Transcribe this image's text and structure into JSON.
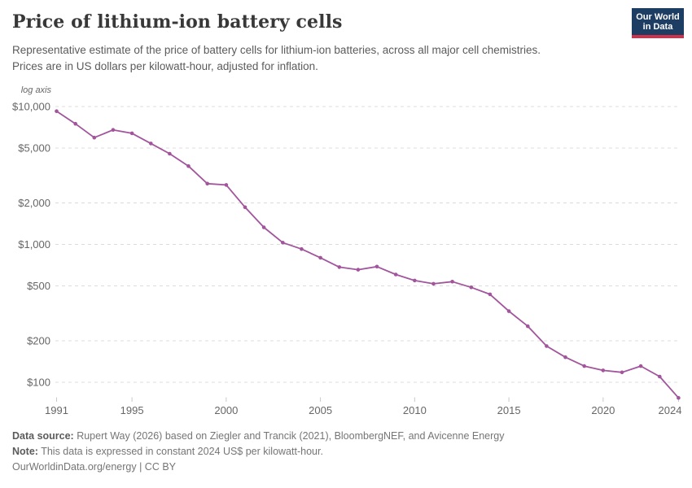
{
  "header": {
    "title": "Price of lithium-ion battery cells",
    "subtitle_line1": "Representative estimate of the price of battery cells for lithium-ion batteries, across all major cell chemistries.",
    "subtitle_line2": "Prices are in US dollars per kilowatt-hour, adjusted for inflation.",
    "logo": {
      "line1": "Our World",
      "line2": "in Data",
      "bg_color": "#1d3d63",
      "accent_color": "#cf304a"
    }
  },
  "chart_data": {
    "type": "line",
    "title": "Price of lithium-ion battery cells",
    "scale_note": "log axis",
    "grid": true,
    "legend_position": "none",
    "x": [
      1991,
      1992,
      1993,
      1994,
      1995,
      1996,
      1997,
      1998,
      1999,
      2000,
      2001,
      2002,
      2003,
      2004,
      2005,
      2006,
      2007,
      2008,
      2009,
      2010,
      2011,
      2012,
      2013,
      2014,
      2015,
      2016,
      2017,
      2018,
      2019,
      2020,
      2021,
      2022,
      2023,
      2024
    ],
    "series": [
      {
        "name": "Price of lithium-ion battery cells",
        "color": "#a2559c",
        "values": [
          9250,
          7500,
          5950,
          6770,
          6400,
          5400,
          4550,
          3700,
          2760,
          2700,
          1860,
          1330,
          1030,
          925,
          800,
          685,
          655,
          690,
          605,
          547,
          518,
          537,
          488,
          434,
          328,
          255,
          183,
          152,
          131,
          122,
          118,
          131,
          110,
          77
        ]
      }
    ],
    "x_axis": {
      "ticks": [
        1991,
        1995,
        2000,
        2005,
        2010,
        2015,
        2020,
        2024
      ],
      "range": [
        1991,
        2024
      ]
    },
    "y_axis": {
      "scale": "log",
      "ticks": [
        10000,
        5000,
        2000,
        1000,
        500,
        200,
        100
      ],
      "tick_labels": [
        "$10,000",
        "$5,000",
        "$2,000",
        "$1,000",
        "$500",
        "$200",
        "$100"
      ],
      "range": [
        100,
        10000
      ],
      "unit": "constant 2024 US$ per kilowatt-hour"
    }
  },
  "footer": {
    "source_label": "Data source:",
    "source_text": " Rupert Way (2026) based on Ziegler and Trancik (2021), BloombergNEF, and Avicenne Energy",
    "note_label": "Note:",
    "note_text": " This data is expressed in constant 2024 US$ per kilowatt-hour.",
    "license_line": "OurWorldinData.org/energy | CC BY"
  },
  "colors": {
    "line": "#a2559c",
    "title_text": "#383838",
    "subtitle_text": "#5b5b5b",
    "axis_text": "#666666",
    "grid_line": "#dcdcdc",
    "logo_bg": "#1d3d63",
    "logo_accent": "#cf304a"
  }
}
